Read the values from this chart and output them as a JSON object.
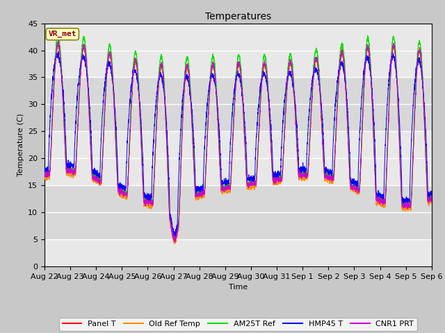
{
  "title": "Temperatures",
  "ylabel": "Temperature (C)",
  "xlabel": "Time",
  "ylim": [
    0,
    45
  ],
  "yticks": [
    0,
    5,
    10,
    15,
    20,
    25,
    30,
    35,
    40,
    45
  ],
  "num_days": 15,
  "points_per_day": 288,
  "annotation": "VR_met",
  "series": [
    {
      "label": "Panel T",
      "color": "#ff0000",
      "lw": 0.7
    },
    {
      "label": "Old Ref Temp",
      "color": "#ff8c00",
      "lw": 0.7
    },
    {
      "label": "AM25T Ref",
      "color": "#00dd00",
      "lw": 0.8
    },
    {
      "label": "HMP45 T",
      "color": "#0000ff",
      "lw": 0.7
    },
    {
      "label": "CNR1 PRT",
      "color": "#cc00cc",
      "lw": 0.7
    }
  ],
  "bg_color": "#c8c8c8",
  "plot_bg_light": "#e8e8e8",
  "plot_bg_dark": "#d0d0d0",
  "grid_color": "#ffffff",
  "xtick_labels": [
    "Aug 22",
    "Aug 23",
    "Aug 24",
    "Aug 25",
    "Aug 26",
    "Aug 27",
    "Aug 28",
    "Aug 29",
    "Aug 30",
    "Aug 31",
    "Sep 1",
    "Sep 2",
    "Sep 3",
    "Sep 4",
    "Sep 5",
    "Sep 6"
  ],
  "band_colors": [
    "#e8e8e8",
    "#d8d8d8"
  ]
}
